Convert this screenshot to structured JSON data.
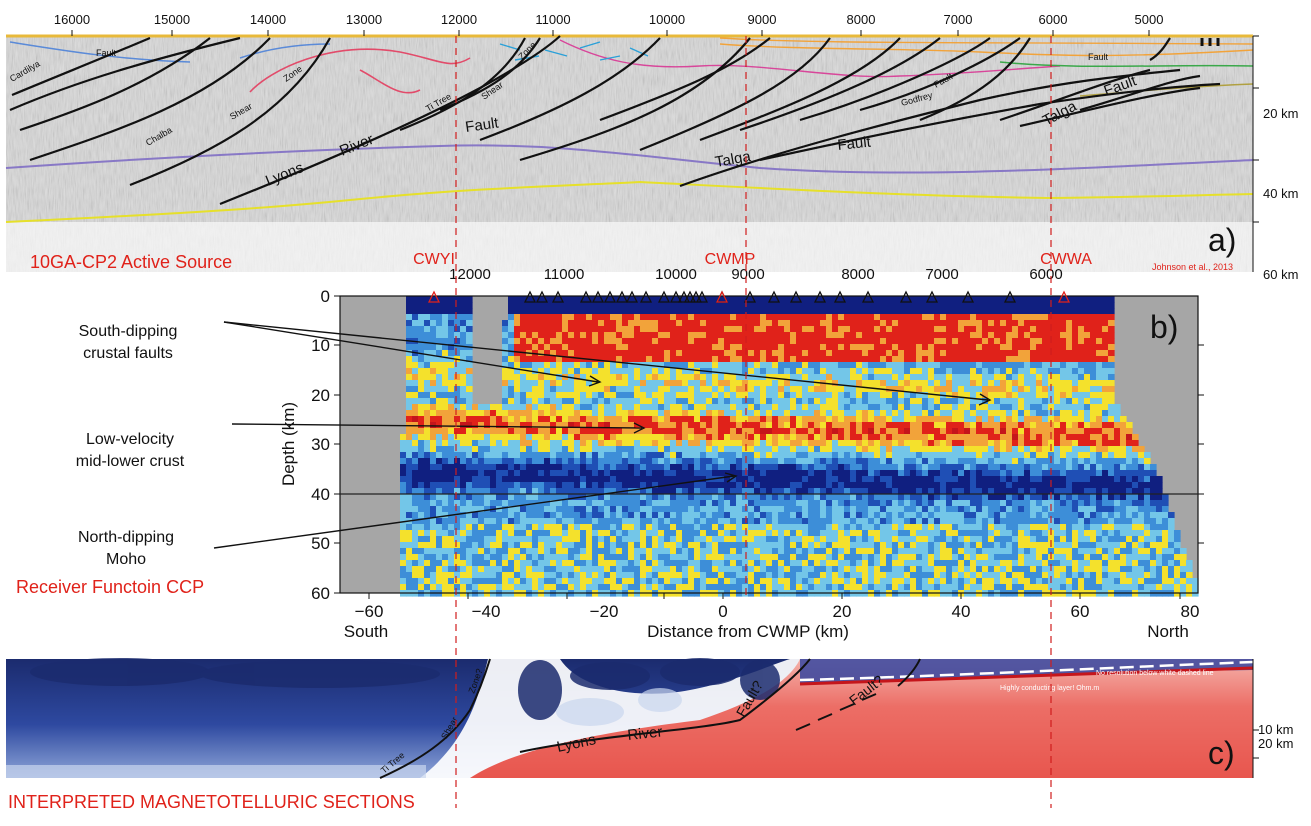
{
  "colors": {
    "red": "#e0221a",
    "darkRed": "#c5151b",
    "orange": "#f2a33a",
    "yellow": "#f4e12c",
    "cyan": "#73c6e8",
    "lightBlue": "#3d8ed8",
    "blue": "#1f4fb5",
    "navy": "#101f80",
    "gray": "#a9a9a9",
    "seismicBg": "#d8d8d8",
    "mtNavy": "#1b2b6e",
    "mtBlue": "#3559b0",
    "mtPale": "#c9d6ee",
    "mtRed": "#e8605a",
    "mtPink": "#f3b4ae",
    "pink": "#e24b6a",
    "purple": "#8878c6",
    "green": "#3aa84a"
  },
  "panelA": {
    "topAxisTicks": [
      "16000",
      "15000",
      "14000",
      "13000",
      "12000",
      "11000",
      "10000",
      "9000",
      "8000",
      "7000",
      "6000",
      "5000"
    ],
    "depthTicks": [
      "20 km",
      "40 km",
      "60 km"
    ],
    "label": "a)",
    "title": "10GA-CP2 Active Source",
    "credit": "Johnson et al., 2013",
    "faultLabels": {
      "lyons": "Lyons",
      "river": "River",
      "fault1": "Fault",
      "talga1": "Talga",
      "fault2": "Fault",
      "talga2": "Talga",
      "fault3": "Fault",
      "fault4": "Fault",
      "cardilya": "Cardilya",
      "chalba": "Chalba",
      "shear1": "Shear",
      "zone1": "Zone",
      "titree": "Ti Tree",
      "shear2": "Shear",
      "zone2": "Zone",
      "godfrey": "Godfrey",
      "fault5": "Fault",
      "faultSmall": "Fault"
    }
  },
  "stations": {
    "cwyi": "CWYI",
    "cwmp": "CWMP",
    "cwwa": "CWWA"
  },
  "panelB": {
    "topTicks": [
      "12000",
      "11000",
      "10000",
      "9000",
      "8000",
      "7000",
      "6000"
    ],
    "label": "b)",
    "ylabel": "Depth (km)",
    "xlabel": "Distance from CWMP (km)",
    "south": "South",
    "north": "North",
    "xTicks": [
      "−60",
      "−40",
      "−20",
      "0",
      "20",
      "40",
      "60",
      "80"
    ],
    "yTicks": [
      "0",
      "10",
      "20",
      "30",
      "40",
      "50",
      "60"
    ],
    "title": "Receiver Functoin CCP",
    "annotations": {
      "faults1": "South-dipping",
      "faults2": "crustal faults",
      "lowvel1": "Low-velocity",
      "lowvel2": "mid-lower crust",
      "moho1": "North-dipping",
      "moho2": "Moho"
    }
  },
  "panelC": {
    "label": "c)",
    "depthTicks": [
      "10 km",
      "20 km"
    ],
    "lyons": "Lyons",
    "river": "River",
    "faultQ1": "Fault?",
    "faultQ2": "Fault?",
    "shear": "Shear",
    "zone": "Zone?",
    "titree": "Ti Tree",
    "note1": "No resolution below white dashed line",
    "note2": "Highly conducting layer! Ohm.m",
    "title": "INTERPRETED MAGNETOTELLURIC SECTIONS"
  }
}
